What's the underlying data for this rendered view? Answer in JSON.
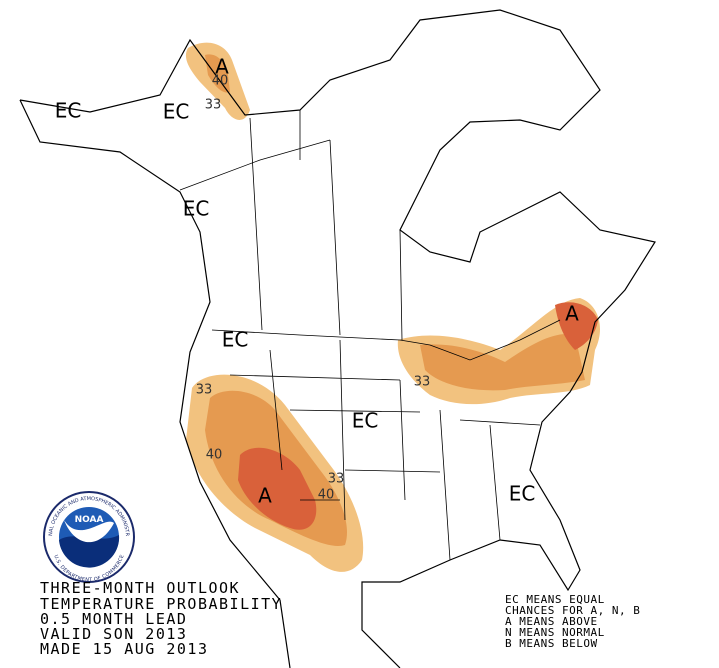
{
  "map_labels": [
    "EC",
    "EC",
    "A",
    "40",
    "33",
    "EC",
    "EC",
    "33",
    "40",
    "A",
    "33",
    "40",
    "EC",
    "A",
    "33",
    "EC"
  ],
  "title_lines": [
    "THREE-MONTH OUTLOOK",
    "TEMPERATURE PROBABILITY",
    "0.5 MONTH LEAD",
    "VALID SON 2013",
    "MADE 15 AUG 2013"
  ],
  "legend_lines": [
    "EC MEANS EQUAL",
    "CHANCES FOR A, N, B",
    "A MEANS ABOVE",
    "N MEANS NORMAL",
    "B MEANS BELOW"
  ],
  "logo": {
    "name": "NOAA",
    "ring_top": "NATIONAL OCEANIC AND ATMOSPHERIC ADMINISTRATION",
    "ring_bottom": "U.S. DEPARTMENT OF COMMERCE"
  }
}
